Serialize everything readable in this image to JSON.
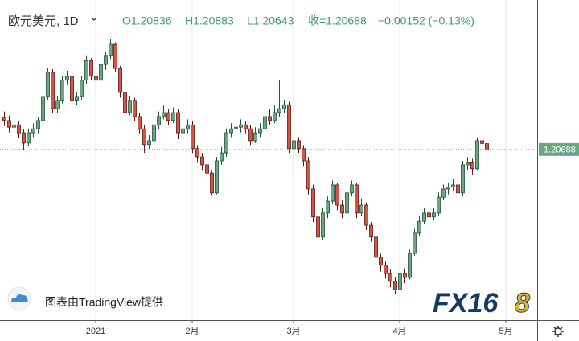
{
  "chart_data": {
    "type": "candlestick",
    "title": "欧元美元, 1D",
    "ohlc_labels": [
      "O1.20836",
      "H1.20883",
      "L1.20643",
      "收=1.20688",
      "−0.00152 (−0.13%)"
    ],
    "attribution": "图表由TradingView提供",
    "logo": [
      "FX16",
      "8"
    ],
    "up_color": "#6ba583",
    "up_border": "#225437",
    "down_color": "#d75442",
    "down_border": "#5b1a13",
    "ylim": [
      1.1637,
      1.2447
    ],
    "last_price": 1.20688,
    "categories": [
      null,
      null,
      null,
      null,
      null,
      null,
      null,
      null,
      null,
      null,
      null,
      null,
      null,
      null,
      null,
      null,
      null,
      null,
      null,
      "2021",
      null,
      null,
      null,
      null,
      null,
      null,
      null,
      null,
      null,
      null,
      null,
      null,
      null,
      null,
      null,
      null,
      null,
      null,
      null,
      "2月",
      null,
      null,
      null,
      null,
      null,
      null,
      null,
      null,
      null,
      null,
      null,
      null,
      null,
      null,
      null,
      null,
      null,
      null,
      null,
      null,
      "3月",
      null,
      null,
      null,
      null,
      null,
      null,
      null,
      null,
      null,
      null,
      null,
      null,
      null,
      null,
      null,
      null,
      null,
      null,
      null,
      null,
      null,
      "4月",
      null,
      null,
      null,
      null,
      null,
      null,
      null,
      null,
      null,
      null,
      null,
      null,
      null,
      null,
      null,
      null,
      null,
      null,
      null,
      null,
      null,
      "5月"
    ],
    "open": [
      1.215,
      1.2142,
      1.2125,
      1.2131,
      1.2111,
      1.2085,
      1.2111,
      1.2121,
      1.2142,
      1.2203,
      1.2264,
      1.2172,
      1.2193,
      1.2244,
      1.2254,
      1.2193,
      1.2203,
      1.2244,
      1.2294,
      1.2254,
      1.2244,
      1.2284,
      1.2305,
      1.2335,
      1.2274,
      1.2213,
      1.2162,
      1.2193,
      1.2152,
      1.2121,
      1.2081,
      1.2091,
      1.2131,
      1.2152,
      1.2162,
      1.2142,
      1.2162,
      1.2111,
      1.2121,
      1.2131,
      1.2071,
      1.205,
      1.203,
      1.2009,
      1.1959,
      1.204,
      1.206,
      1.2111,
      1.2121,
      1.2125,
      1.2131,
      1.2121,
      1.2091,
      1.2111,
      1.2121,
      1.2152,
      1.2142,
      1.2162,
      1.2172,
      1.2182,
      1.2071,
      1.2091,
      1.2071,
      1.204,
      1.1969,
      1.1898,
      1.1847,
      1.1908,
      1.1938,
      1.1979,
      1.1928,
      1.1908,
      1.1959,
      1.1979,
      1.1908,
      1.1928,
      1.1877,
      1.1847,
      1.1796,
      1.1776,
      1.1755,
      1.1735,
      1.1714,
      1.1755,
      1.1745,
      1.1806,
      1.1857,
      1.1887,
      1.1908,
      1.1898,
      1.1908,
      1.1948,
      1.1969,
      1.1974,
      1.1979,
      1.1959,
      1.203,
      1.2035,
      1.202,
      1.2091,
      1.20836,
      null,
      null,
      null,
      null
    ],
    "high": [
      1.2165,
      1.2155,
      1.2145,
      1.214,
      1.212,
      1.2122,
      1.2135,
      1.2152,
      1.2212,
      1.2275,
      1.2272,
      1.2205,
      1.2255,
      1.2268,
      1.2262,
      1.2215,
      1.2255,
      1.2305,
      1.23,
      1.2265,
      1.2295,
      1.2315,
      1.2349,
      1.234,
      1.228,
      1.2222,
      1.2205,
      1.22,
      1.216,
      1.213,
      1.2105,
      1.214,
      1.2165,
      1.218,
      1.2172,
      1.2175,
      1.217,
      1.2135,
      1.2145,
      1.214,
      1.208,
      1.206,
      1.204,
      1.2015,
      1.205,
      1.2075,
      1.2122,
      1.2135,
      1.214,
      1.2145,
      1.214,
      1.213,
      1.2125,
      1.2135,
      1.2165,
      1.217,
      1.218,
      1.2244,
      1.2195,
      1.219,
      1.2105,
      1.21,
      1.208,
      1.205,
      1.198,
      1.1905,
      1.192,
      1.195,
      1.199,
      1.1985,
      1.194,
      1.197,
      1.199,
      1.1985,
      1.1945,
      1.1935,
      1.1885,
      1.1855,
      1.1805,
      1.1785,
      1.1765,
      1.1745,
      1.1765,
      1.1768,
      1.1815,
      1.1868,
      1.19,
      1.192,
      1.1915,
      1.192,
      1.196,
      1.198,
      1.1985,
      1.1995,
      1.199,
      1.204,
      1.205,
      1.2045,
      1.21,
      1.2115,
      1.20883,
      null,
      null,
      null,
      null
    ],
    "low": [
      1.2128,
      1.2112,
      1.2115,
      1.2098,
      1.2068,
      1.2078,
      1.21,
      1.211,
      1.2135,
      1.2195,
      1.216,
      1.216,
      1.2185,
      1.2232,
      1.218,
      1.2182,
      1.2195,
      1.2235,
      1.2245,
      1.223,
      1.2238,
      1.227,
      1.2298,
      1.2265,
      1.22,
      1.215,
      1.2155,
      1.214,
      1.211,
      1.206,
      1.207,
      1.2085,
      1.212,
      1.2145,
      1.213,
      1.2135,
      1.2095,
      1.21,
      1.211,
      1.206,
      1.2035,
      1.2015,
      1.199,
      1.1952,
      1.1955,
      1.203,
      1.205,
      1.21,
      1.211,
      1.2112,
      1.211,
      1.208,
      1.2085,
      1.21,
      1.2115,
      1.213,
      1.2135,
      1.215,
      1.216,
      1.206,
      1.2062,
      1.206,
      1.2025,
      1.1955,
      1.1885,
      1.1835,
      1.184,
      1.1895,
      1.193,
      1.1915,
      1.1895,
      1.19,
      1.195,
      1.1895,
      1.19,
      1.1865,
      1.1835,
      1.1785,
      1.176,
      1.1742,
      1.172,
      1.1704,
      1.1708,
      1.173,
      1.174,
      1.18,
      1.185,
      1.188,
      1.1885,
      1.189,
      1.19,
      1.194,
      1.1955,
      1.1965,
      1.1948,
      1.195,
      1.2015,
      1.2005,
      1.2015,
      1.207,
      1.20643,
      null,
      null,
      null,
      null
    ],
    "close": [
      1.2142,
      1.2125,
      1.2131,
      1.2111,
      1.2085,
      1.2111,
      1.2121,
      1.2142,
      1.2203,
      1.2264,
      1.2172,
      1.2193,
      1.2244,
      1.2254,
      1.2193,
      1.2203,
      1.2244,
      1.2294,
      1.2254,
      1.2244,
      1.2284,
      1.2305,
      1.2335,
      1.2274,
      1.2213,
      1.2162,
      1.2193,
      1.2152,
      1.2121,
      1.2081,
      1.2091,
      1.2131,
      1.2152,
      1.2162,
      1.2142,
      1.2162,
      1.2111,
      1.2121,
      1.2131,
      1.2071,
      1.205,
      1.203,
      1.2009,
      1.1959,
      1.204,
      1.206,
      1.2111,
      1.2121,
      1.2125,
      1.2131,
      1.2121,
      1.2091,
      1.2111,
      1.2121,
      1.2152,
      1.2142,
      1.2162,
      1.2172,
      1.2182,
      1.2071,
      1.2091,
      1.2071,
      1.204,
      1.1969,
      1.1898,
      1.1847,
      1.1908,
      1.1938,
      1.1979,
      1.1928,
      1.1908,
      1.1959,
      1.1979,
      1.1908,
      1.1928,
      1.1877,
      1.1847,
      1.1796,
      1.1776,
      1.1755,
      1.1735,
      1.1714,
      1.1755,
      1.1745,
      1.1806,
      1.1857,
      1.1887,
      1.1908,
      1.1898,
      1.1908,
      1.1948,
      1.1969,
      1.1974,
      1.1979,
      1.1959,
      1.203,
      1.2035,
      1.202,
      1.2091,
      1.2084,
      1.20688,
      null,
      null,
      null,
      null
    ]
  }
}
